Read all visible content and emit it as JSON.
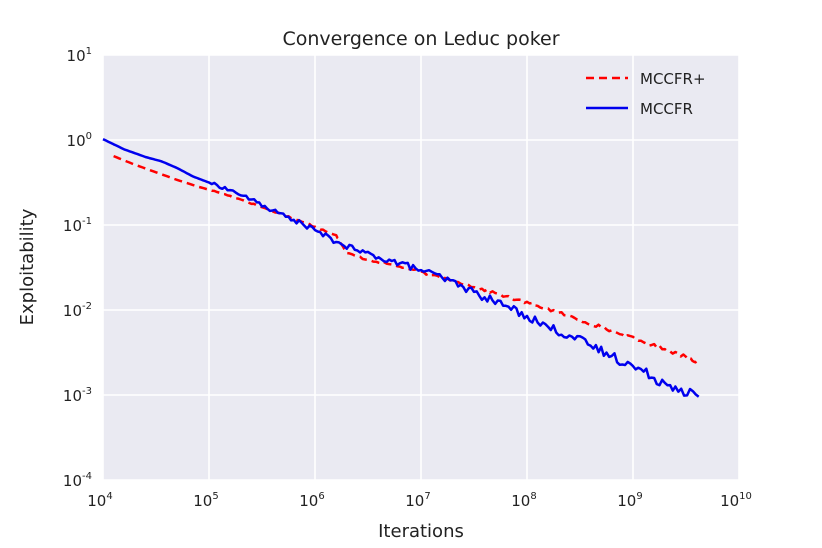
{
  "chart_data": {
    "type": "line",
    "title": "Convergence on Leduc poker",
    "xlabel": "Iterations",
    "ylabel": "Exploitability",
    "xscale": "log",
    "yscale": "log",
    "xlim_exp": [
      4,
      10
    ],
    "ylim_exp": [
      -4,
      1
    ],
    "x_ticks": [
      {
        "base": "10",
        "exp": "4"
      },
      {
        "base": "10",
        "exp": "5"
      },
      {
        "base": "10",
        "exp": "6"
      },
      {
        "base": "10",
        "exp": "7"
      },
      {
        "base": "10",
        "exp": "8"
      },
      {
        "base": "10",
        "exp": "9"
      },
      {
        "base": "10",
        "exp": "10"
      }
    ],
    "y_ticks": [
      {
        "base": "10",
        "exp": "1"
      },
      {
        "base": "10",
        "exp": "0"
      },
      {
        "base": "10",
        "exp": "-1"
      },
      {
        "base": "10",
        "exp": "-2"
      },
      {
        "base": "10",
        "exp": "-3"
      },
      {
        "base": "10",
        "exp": "-4"
      }
    ],
    "grid": true,
    "legend_position": "top-right",
    "series": [
      {
        "name": "MCCFR+",
        "color": "#ff0000",
        "style": "dashed",
        "log10_x": [
          4.1,
          4.3,
          4.5,
          4.7,
          4.9,
          5.1,
          5.3,
          5.5,
          5.7,
          5.9,
          6.0,
          6.2,
          6.3,
          6.5,
          6.7,
          6.9,
          7.1,
          7.3,
          7.5,
          7.7,
          7.9,
          8.1,
          8.3,
          8.5,
          8.7,
          8.9,
          9.1,
          9.3,
          9.5,
          9.62
        ],
        "log10_y": [
          -0.19,
          -0.29,
          -0.38,
          -0.47,
          -0.55,
          -0.62,
          -0.7,
          -0.79,
          -0.88,
          -0.97,
          -1.02,
          -1.12,
          -1.33,
          -1.41,
          -1.46,
          -1.52,
          -1.59,
          -1.65,
          -1.73,
          -1.8,
          -1.88,
          -1.95,
          -2.03,
          -2.12,
          -2.2,
          -2.29,
          -2.38,
          -2.46,
          -2.55,
          -2.61
        ]
      },
      {
        "name": "MCCFR",
        "color": "#0000ee",
        "style": "solid",
        "log10_x": [
          4.0,
          4.2,
          4.4,
          4.55,
          4.7,
          4.85,
          5.0,
          5.2,
          5.4,
          5.6,
          5.8,
          6.0,
          6.2,
          6.4,
          6.6,
          6.8,
          7.0,
          7.2,
          7.4,
          7.6,
          7.8,
          8.0,
          8.2,
          8.4,
          8.6,
          8.8,
          9.0,
          9.2,
          9.4,
          9.62
        ],
        "log10_y": [
          0.01,
          -0.11,
          -0.2,
          -0.25,
          -0.33,
          -0.43,
          -0.5,
          -0.59,
          -0.7,
          -0.83,
          -0.94,
          -1.06,
          -1.2,
          -1.3,
          -1.38,
          -1.45,
          -1.53,
          -1.62,
          -1.73,
          -1.85,
          -1.95,
          -2.07,
          -2.2,
          -2.3,
          -2.42,
          -2.54,
          -2.66,
          -2.8,
          -2.9,
          -3.02
        ]
      }
    ]
  }
}
